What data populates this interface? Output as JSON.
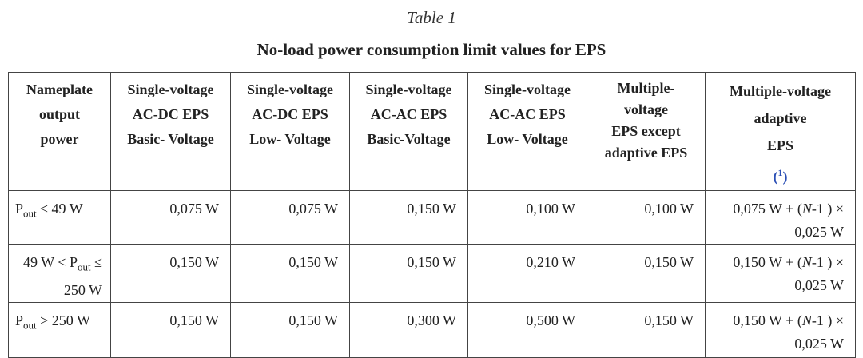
{
  "caption": {
    "label": "Table 1",
    "title": "No-load power consumption limit values for EPS"
  },
  "table": {
    "header": [
      [
        "Nameplate",
        "output",
        "power"
      ],
      [
        "Single-voltage",
        "AC-DC EPS",
        "Basic- Voltage"
      ],
      [
        "Single-voltage",
        "AC-DC EPS",
        "Low- Voltage"
      ],
      [
        "Single-voltage",
        "AC-AC EPS",
        "Basic-Voltage"
      ],
      [
        "Single-voltage",
        "AC-AC EPS",
        "Low- Voltage"
      ],
      [
        "Multiple-",
        "voltage",
        "EPS except",
        "adaptive EPS"
      ],
      {
        "lines": [
          "Multiple-voltage",
          "adaptive"
        ],
        "note": {
          "text": "EPS",
          "open": "(",
          "ref": "1",
          "close": ")"
        }
      }
    ],
    "rows": [
      [
        {
          "pre": "P",
          "sub": "out",
          "post": "≤ 49  W"
        },
        "0,075  W",
        "0,075  W",
        "0,150  W",
        "0,100  W",
        "0,100  W",
        {
          "pre": "0,075  W + (",
          "var": "N",
          "post": "-1 ) ×",
          "line2": "0,025  W"
        }
      ],
      [
        {
          "pre": "49  W < P",
          "sub": "out",
          "post": "≤ 250  W"
        },
        "0,150  W",
        "0,150  W",
        "0,150  W",
        "0,210  W",
        "0,150  W",
        {
          "pre": "0,150  W + (",
          "var": "N",
          "post": "-1 ) ×",
          "line2": "0,025  W"
        }
      ],
      [
        {
          "pre": "P",
          "sub": "out",
          "post": "> 250  W"
        },
        "0,150  W",
        "0,150  W",
        "0,300  W",
        "0,500  W",
        "0,150  W",
        {
          "pre": "0,150  W + (",
          "var": "N",
          "post": "-1 ) ×",
          "line2": "0,025  W"
        }
      ]
    ]
  }
}
